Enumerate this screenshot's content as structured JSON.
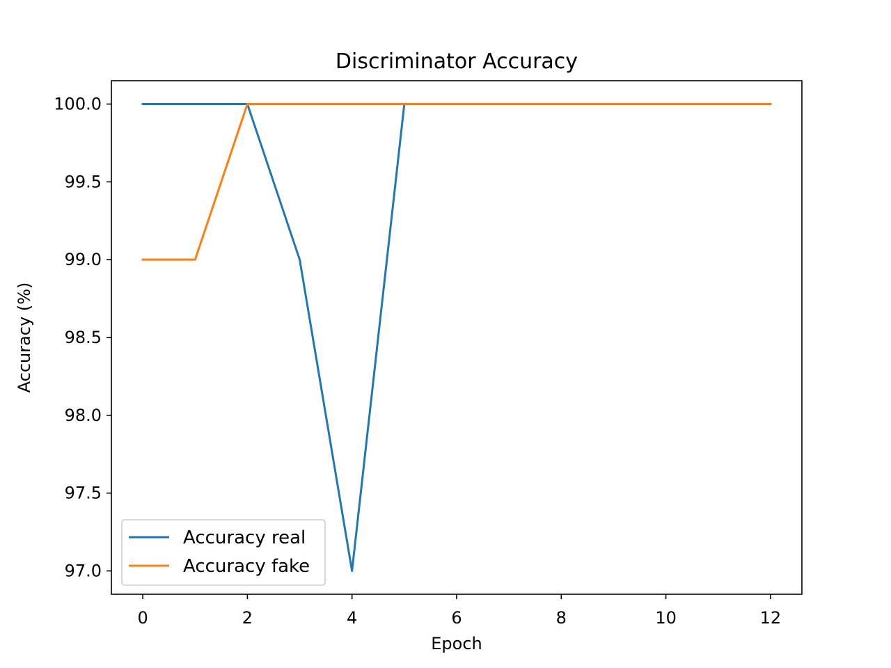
{
  "chart_data": {
    "type": "line",
    "title": "Discriminator Accuracy",
    "xlabel": "Epoch",
    "ylabel": "Accuracy (%)",
    "xlim": [
      -0.6,
      12.6
    ],
    "ylim": [
      96.85,
      100.15
    ],
    "xticks": [
      0,
      2,
      4,
      6,
      8,
      10,
      12
    ],
    "xtick_labels": [
      "0",
      "2",
      "4",
      "6",
      "8",
      "10",
      "12"
    ],
    "yticks": [
      97.0,
      97.5,
      98.0,
      98.5,
      99.0,
      99.5,
      100.0
    ],
    "ytick_labels": [
      "97.0",
      "97.5",
      "98.0",
      "98.5",
      "99.0",
      "99.5",
      "100.0"
    ],
    "grid": false,
    "legend_position": "lower-left",
    "x": [
      0,
      1,
      2,
      3,
      4,
      5,
      6,
      7,
      8,
      9,
      10,
      11,
      12
    ],
    "series": [
      {
        "name": "Accuracy real",
        "color": "#1f77b4",
        "values": [
          100.0,
          100.0,
          100.0,
          99.0,
          97.0,
          100.0,
          100.0,
          100.0,
          100.0,
          100.0,
          100.0,
          100.0,
          100.0
        ]
      },
      {
        "name": "Accuracy fake",
        "color": "#ff7f0e",
        "values": [
          99.0,
          99.0,
          100.0,
          100.0,
          100.0,
          100.0,
          100.0,
          100.0,
          100.0,
          100.0,
          100.0,
          100.0,
          100.0
        ]
      }
    ]
  }
}
